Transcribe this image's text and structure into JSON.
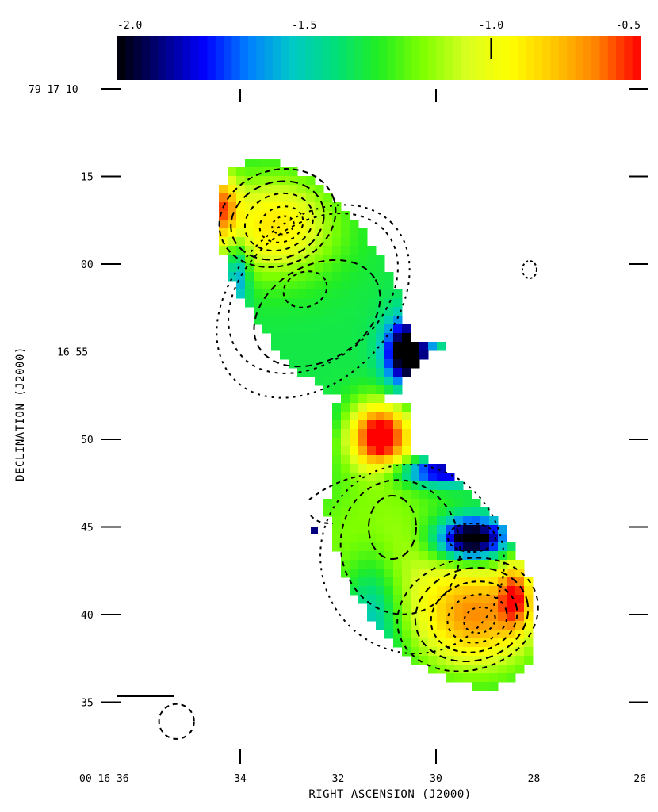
{
  "chart_data": {
    "type": "heatmap",
    "title": "",
    "colorbar": {
      "range": [
        -2.0,
        -0.6
      ],
      "tick_labels": [
        "-2.0",
        "-1.5",
        "-1.0",
        "-0.5"
      ],
      "tick_values": [
        -2.0,
        -1.5,
        -1.0,
        -0.5
      ],
      "marker_value": -1.0,
      "colormap": [
        "#000000",
        "#00007f",
        "#0000ff",
        "#007fff",
        "#00c8c8",
        "#00e07a",
        "#22ee22",
        "#7dff00",
        "#d8ff20",
        "#ffff00",
        "#ffc800",
        "#ff8000",
        "#ff0000"
      ]
    },
    "xlabel": "RIGHT ASCENSION (J2000)",
    "ylabel": "DECLINATION (J2000)",
    "x_tick_labels": [
      "00 16 36",
      "34",
      "32",
      "30",
      "28",
      "26"
    ],
    "x_tick_values_sec": [
      36,
      34,
      32,
      30,
      28,
      26
    ],
    "y_tick_labels": [
      "79 17 10",
      "15",
      "00",
      "16 55",
      "50",
      "45",
      "40",
      "35"
    ],
    "y_tick_values_arcsec": [
      70,
      65,
      60,
      55,
      50,
      45,
      40,
      35
    ],
    "y_tick_markers": [
      70,
      65,
      60,
      50,
      45,
      40,
      35
    ],
    "xlim_sec": [
      36,
      26
    ],
    "ylim_arcsec": [
      34,
      70
    ],
    "beam": {
      "major_arcsec": 2.0,
      "minor_arcsec": 2.0,
      "ra_sec": 35.3,
      "dec_arcsec": 35.7
    }
  }
}
